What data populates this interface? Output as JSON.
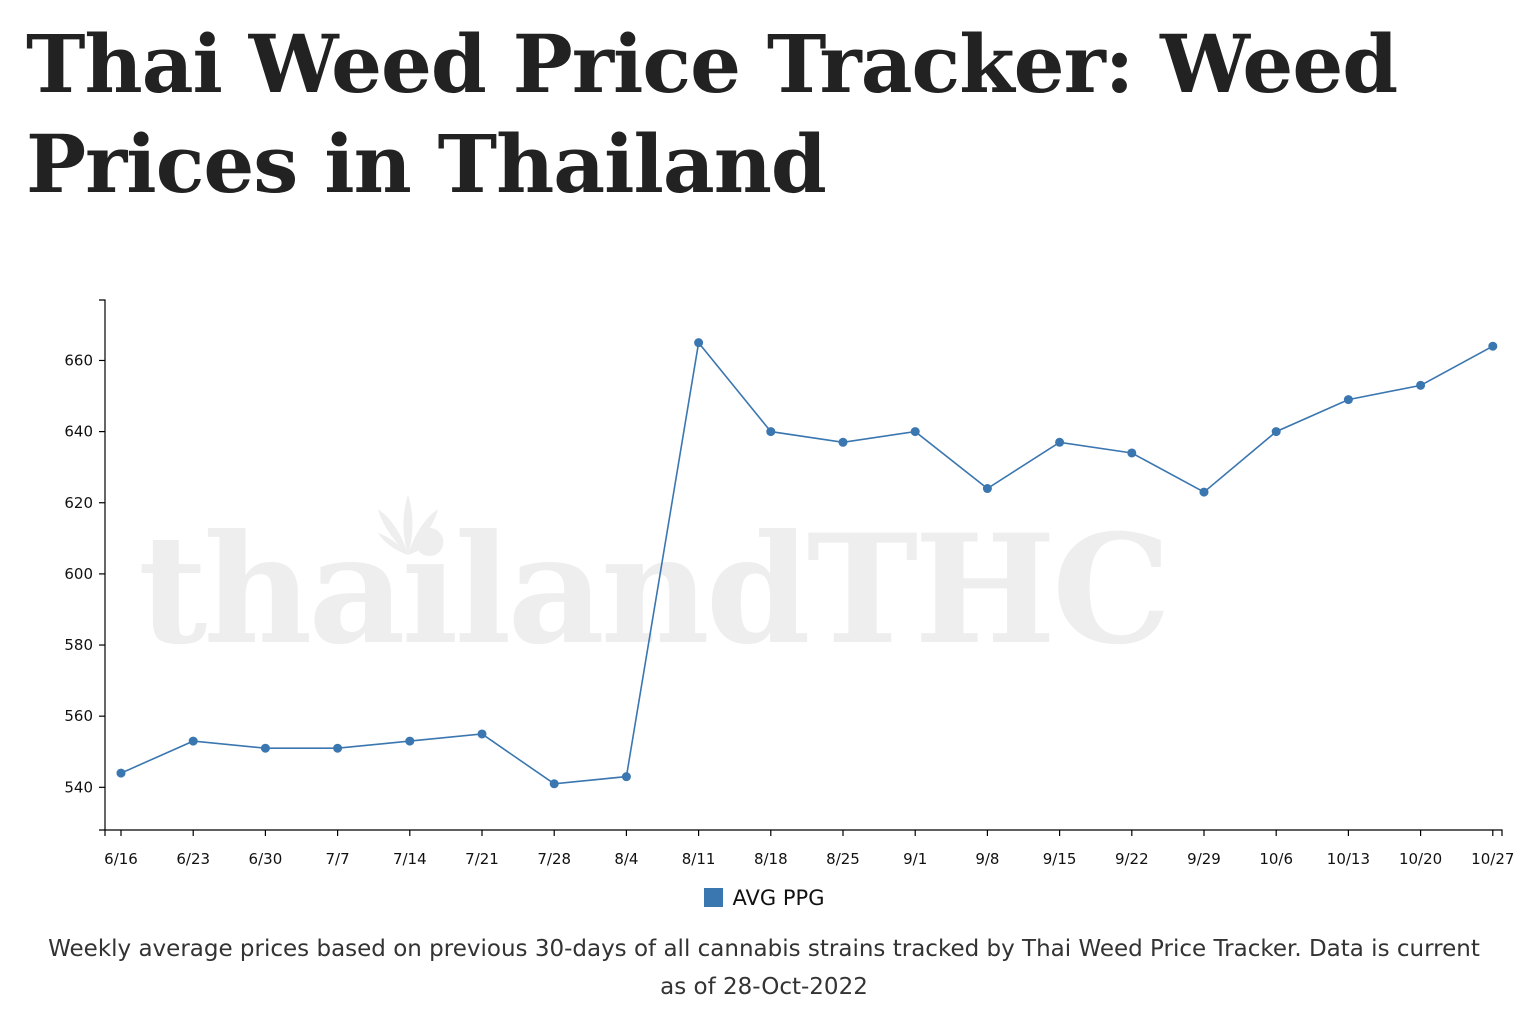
{
  "page": {
    "title": "Thai Weed Price Tracker: Weed Prices in Thailand",
    "watermark": "thailandTHC",
    "caption": "Weekly average prices based on previous 30-days of all cannabis strains tracked by Thai Weed Price Tracker. Data is current as of 28-Oct-2022"
  },
  "chart_data": {
    "type": "line",
    "title": "",
    "xlabel": "",
    "ylabel": "",
    "categories": [
      "6/16",
      "6/23",
      "6/30",
      "7/7",
      "7/14",
      "7/21",
      "7/28",
      "8/4",
      "8/11",
      "8/18",
      "8/25",
      "9/1",
      "9/8",
      "9/15",
      "9/22",
      "9/29",
      "10/6",
      "10/13",
      "10/20",
      "10/27"
    ],
    "series": [
      {
        "name": "AVG PPG",
        "color": "#3a76af",
        "values": [
          544,
          553,
          551,
          551,
          553,
          555,
          541,
          543,
          665,
          640,
          637,
          640,
          624,
          637,
          634,
          623,
          640,
          649,
          653,
          664
        ]
      }
    ],
    "ylim": [
      528,
      677
    ],
    "yticks": [
      540,
      560,
      580,
      600,
      620,
      640,
      660
    ],
    "grid": false,
    "legend": "bottom-center"
  }
}
